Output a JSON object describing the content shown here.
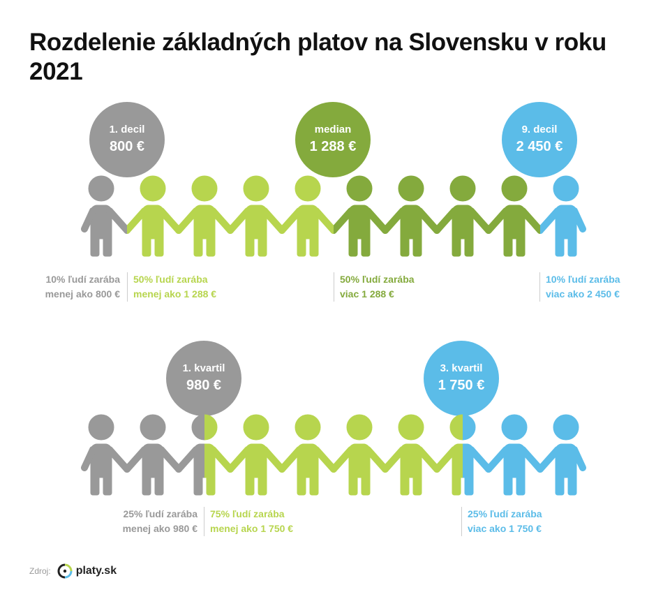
{
  "title": "Rozdelenie základných platov na Slovensku v roku 2021",
  "colors": {
    "gray": "#999999",
    "lightgreen": "#b7d54e",
    "green": "#84aa3d",
    "blue": "#5bbce8"
  },
  "chart_data": [
    {
      "type": "pictogram",
      "people_count": 10,
      "markers": [
        {
          "name": "1. decil",
          "value": "800 €",
          "color": "#999999",
          "position_people": 1
        },
        {
          "name": "median",
          "value": "1 288 €",
          "color": "#84aa3d",
          "position_people": 5
        },
        {
          "name": "9. decil",
          "value": "2 450 €",
          "color": "#5bbce8",
          "position_people": 9
        }
      ],
      "segments": [
        {
          "from": 0,
          "to": 1,
          "color": "#999999",
          "line1": "10% ľudí zarába",
          "line2": "menej ako 800 €"
        },
        {
          "from": 1,
          "to": 5,
          "color": "#b7d54e",
          "line1": "50% ľudí zarába",
          "line2": "menej ako 1 288 €"
        },
        {
          "from": 5,
          "to": 9,
          "color": "#84aa3d",
          "line1": "50% ľudí zarába",
          "line2": "viac 1 288 €"
        },
        {
          "from": 9,
          "to": 10,
          "color": "#5bbce8",
          "line1": "10% ľudí zarába",
          "line2": "viac ako 2 450 €"
        }
      ]
    },
    {
      "type": "pictogram",
      "people_count": 10,
      "markers": [
        {
          "name": "1. kvartil",
          "value": "980 €",
          "color": "#999999",
          "position_people": 2.5
        },
        {
          "name": "3. kvartil",
          "value": "1 750 €",
          "color": "#5bbce8",
          "position_people": 7.5
        }
      ],
      "segments": [
        {
          "from": 0,
          "to": 2.5,
          "color": "#999999",
          "line1": "25% ľudí zarába",
          "line2": "menej ako 980 €"
        },
        {
          "from": 2.5,
          "to": 7.5,
          "color": "#b7d54e",
          "line1": "75% ľudí zarába",
          "line2": "menej ako 1 750 €"
        },
        {
          "from": 7.5,
          "to": 10,
          "color": "#5bbce8",
          "line1": "25% ľudí zarába",
          "line2": "viac ako 1 750 €"
        }
      ]
    }
  ],
  "source": {
    "label": "Zdroj:",
    "brand": "platy.sk"
  }
}
